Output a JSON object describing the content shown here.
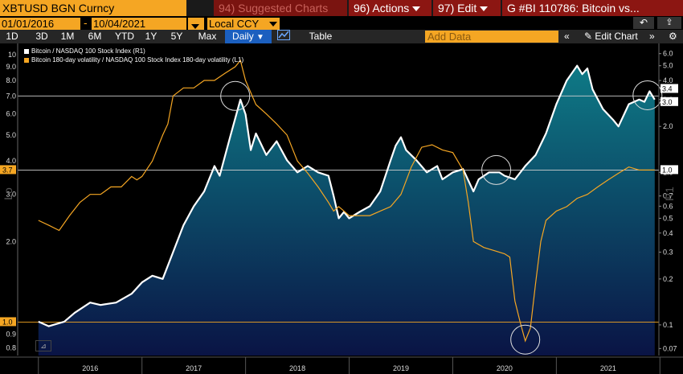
{
  "header": {
    "ticker": "XBTUSD BGN Curncy",
    "suggested": "94) Suggested Charts",
    "actions": "96) Actions",
    "edit": "97) Edit",
    "title": "G #BI 110786: Bitcoin vs..."
  },
  "controls": {
    "start_date": "01/01/2016",
    "dash": "-",
    "end_date": "10/04/2021",
    "currency": "Local CCY"
  },
  "range": {
    "buttons": [
      "1D",
      "3D",
      "1M",
      "6M",
      "YTD",
      "1Y",
      "5Y",
      "Max"
    ],
    "frequency": "Daily",
    "table": "Table",
    "add_data_placeholder": "Add Data",
    "edit_chart": "Edit Chart"
  },
  "colors": {
    "accent": "#f5a623",
    "tab": "#8c1612",
    "btc": "#ffffff",
    "vol": "#f5a623",
    "area_top": "#0e7a86",
    "area_bottom": "#0a1445"
  },
  "chart_data": {
    "type": "line",
    "legend": [
      "Bitcoin / NASDAQ 100 Stock Index (R1)",
      "Bitcoin 180-day volatility / NASDAQ 100 Stock Index 180-day volatility (L1)"
    ],
    "x_labels": [
      "2016",
      "2017",
      "2018",
      "2019",
      "2020",
      "2021"
    ],
    "left_axis": {
      "label": "Lo",
      "scale": "log",
      "range": [
        0.75,
        11
      ],
      "ticks": [
        "10",
        "9.0",
        "8.0",
        "7.0",
        "6.0",
        "5.0",
        "4.0",
        "3.0",
        "2.0",
        "0.9",
        "0.8"
      ],
      "highlight": [
        "3.7",
        "1.0"
      ]
    },
    "right_axis": {
      "label": "R1",
      "scale": "log",
      "range": [
        0.063,
        7
      ],
      "ticks": [
        "6.0",
        "5.0",
        "4.0",
        "3.0",
        "2.0",
        "1.0",
        "0.7",
        "0.6",
        "0.5",
        "0.4",
        "0.3",
        "0.2",
        "0.1",
        "0.07"
      ],
      "highlight": [
        "3.4",
        "3.0",
        "1.0"
      ]
    },
    "series": [
      {
        "name": "Bitcoin / NASDAQ 100 Stock Index (R1)",
        "axis": "right",
        "style": "area",
        "points": [
          [
            2016.0,
            0.105
          ],
          [
            2016.1,
            0.098
          ],
          [
            2016.25,
            0.105
          ],
          [
            2016.35,
            0.12
          ],
          [
            2016.5,
            0.14
          ],
          [
            2016.6,
            0.135
          ],
          [
            2016.75,
            0.14
          ],
          [
            2016.9,
            0.16
          ],
          [
            2017.0,
            0.19
          ],
          [
            2017.1,
            0.21
          ],
          [
            2017.2,
            0.2
          ],
          [
            2017.3,
            0.3
          ],
          [
            2017.4,
            0.45
          ],
          [
            2017.5,
            0.6
          ],
          [
            2017.6,
            0.75
          ],
          [
            2017.7,
            1.1
          ],
          [
            2017.75,
            0.95
          ],
          [
            2017.85,
            1.7
          ],
          [
            2017.95,
            3.0
          ],
          [
            2018.0,
            2.4
          ],
          [
            2018.05,
            1.4
          ],
          [
            2018.1,
            1.8
          ],
          [
            2018.2,
            1.3
          ],
          [
            2018.3,
            1.6
          ],
          [
            2018.4,
            1.2
          ],
          [
            2018.5,
            1.0
          ],
          [
            2018.6,
            1.1
          ],
          [
            2018.7,
            1.0
          ],
          [
            2018.8,
            0.95
          ],
          [
            2018.85,
            0.7
          ],
          [
            2018.9,
            0.5
          ],
          [
            2018.95,
            0.55
          ],
          [
            2019.0,
            0.5
          ],
          [
            2019.1,
            0.55
          ],
          [
            2019.2,
            0.6
          ],
          [
            2019.3,
            0.75
          ],
          [
            2019.4,
            1.2
          ],
          [
            2019.45,
            1.5
          ],
          [
            2019.5,
            1.7
          ],
          [
            2019.55,
            1.4
          ],
          [
            2019.65,
            1.2
          ],
          [
            2019.75,
            1.0
          ],
          [
            2019.85,
            1.1
          ],
          [
            2019.9,
            0.9
          ],
          [
            2020.0,
            1.0
          ],
          [
            2020.1,
            1.05
          ],
          [
            2020.2,
            0.75
          ],
          [
            2020.25,
            0.9
          ],
          [
            2020.35,
            1.0
          ],
          [
            2020.45,
            1.0
          ],
          [
            2020.5,
            0.95
          ],
          [
            2020.6,
            0.9
          ],
          [
            2020.7,
            1.1
          ],
          [
            2020.8,
            1.3
          ],
          [
            2020.9,
            1.8
          ],
          [
            2021.0,
            2.8
          ],
          [
            2021.1,
            4.0
          ],
          [
            2021.2,
            5.0
          ],
          [
            2021.25,
            4.4
          ],
          [
            2021.3,
            4.8
          ],
          [
            2021.35,
            3.5
          ],
          [
            2021.45,
            2.6
          ],
          [
            2021.55,
            2.2
          ],
          [
            2021.6,
            2.0
          ],
          [
            2021.7,
            2.8
          ],
          [
            2021.8,
            3.0
          ],
          [
            2021.85,
            2.9
          ],
          [
            2021.9,
            3.4
          ],
          [
            2021.95,
            3.0
          ]
        ]
      },
      {
        "name": "Bitcoin 180-day volatility / NASDAQ 100 Stock Index 180-day volatility (L1)",
        "axis": "left",
        "style": "line",
        "points": [
          [
            2016.0,
            2.4
          ],
          [
            2016.1,
            2.3
          ],
          [
            2016.2,
            2.2
          ],
          [
            2016.3,
            2.5
          ],
          [
            2016.4,
            2.8
          ],
          [
            2016.5,
            3.0
          ],
          [
            2016.6,
            3.0
          ],
          [
            2016.7,
            3.2
          ],
          [
            2016.8,
            3.2
          ],
          [
            2016.9,
            3.5
          ],
          [
            2016.95,
            3.4
          ],
          [
            2017.0,
            3.5
          ],
          [
            2017.1,
            4.0
          ],
          [
            2017.2,
            5.0
          ],
          [
            2017.25,
            5.5
          ],
          [
            2017.3,
            7.0
          ],
          [
            2017.4,
            7.5
          ],
          [
            2017.5,
            7.5
          ],
          [
            2017.6,
            8.0
          ],
          [
            2017.7,
            8.0
          ],
          [
            2017.8,
            8.5
          ],
          [
            2017.9,
            9.0
          ],
          [
            2017.95,
            9.5
          ],
          [
            2018.0,
            8.0
          ],
          [
            2018.1,
            6.5
          ],
          [
            2018.2,
            6.0
          ],
          [
            2018.3,
            5.5
          ],
          [
            2018.4,
            5.0
          ],
          [
            2018.5,
            4.0
          ],
          [
            2018.6,
            3.6
          ],
          [
            2018.7,
            3.2
          ],
          [
            2018.8,
            2.8
          ],
          [
            2018.85,
            2.6
          ],
          [
            2018.9,
            2.7
          ],
          [
            2018.95,
            2.6
          ],
          [
            2019.0,
            2.5
          ],
          [
            2019.1,
            2.5
          ],
          [
            2019.2,
            2.5
          ],
          [
            2019.3,
            2.6
          ],
          [
            2019.4,
            2.7
          ],
          [
            2019.5,
            3.0
          ],
          [
            2019.6,
            3.8
          ],
          [
            2019.7,
            4.5
          ],
          [
            2019.8,
            4.6
          ],
          [
            2019.9,
            4.4
          ],
          [
            2020.0,
            4.3
          ],
          [
            2020.1,
            3.7
          ],
          [
            2020.15,
            2.8
          ],
          [
            2020.2,
            2.0
          ],
          [
            2020.3,
            1.9
          ],
          [
            2020.4,
            1.85
          ],
          [
            2020.5,
            1.8
          ],
          [
            2020.55,
            1.75
          ],
          [
            2020.6,
            1.2
          ],
          [
            2020.65,
            1.0
          ],
          [
            2020.7,
            0.85
          ],
          [
            2020.75,
            0.95
          ],
          [
            2020.8,
            1.4
          ],
          [
            2020.85,
            2.0
          ],
          [
            2020.9,
            2.4
          ],
          [
            2021.0,
            2.6
          ],
          [
            2021.1,
            2.7
          ],
          [
            2021.2,
            2.9
          ],
          [
            2021.3,
            3.0
          ],
          [
            2021.4,
            3.2
          ],
          [
            2021.5,
            3.4
          ],
          [
            2021.6,
            3.6
          ],
          [
            2021.7,
            3.8
          ],
          [
            2021.8,
            3.7
          ],
          [
            2021.9,
            3.7
          ],
          [
            2021.95,
            3.7
          ]
        ]
      }
    ]
  }
}
